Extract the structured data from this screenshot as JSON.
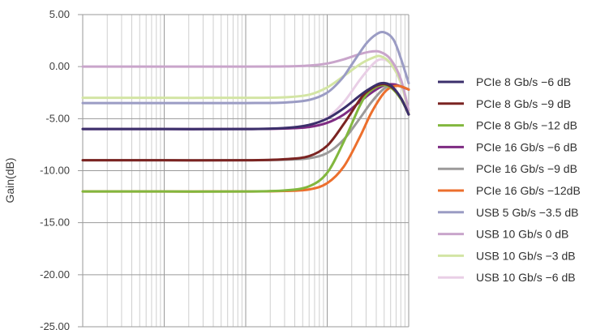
{
  "chart_data": {
    "type": "line",
    "x_scale": "log",
    "xlim": [
      1,
      10000
    ],
    "ylim": [
      -25,
      5
    ],
    "yticks": [
      "5.00",
      "0.00",
      "-5.00",
      "-10.00",
      "-15.00",
      "-20.00",
      "-25.00"
    ],
    "ylabel": "Gain(dB)",
    "xlabel": "",
    "grid": true,
    "legend_position": "right",
    "series": [
      {
        "name": "PCIe 8 Gb/s −6 dB",
        "color": "#3b2f6b",
        "x": [
          1,
          10,
          100,
          300,
          600,
          1000,
          1600,
          2500,
          3200,
          4500,
          6000,
          8000,
          10000
        ],
        "y": [
          -6,
          -6,
          -6,
          -5.9,
          -5.6,
          -5,
          -4,
          -2.8,
          -2.2,
          -1.6,
          -1.8,
          -3,
          -4.6
        ]
      },
      {
        "name": "PCIe 8 Gb/s −9 dB",
        "color": "#7b2422",
        "x": [
          1,
          10,
          100,
          300,
          600,
          1000,
          1600,
          2500,
          3200,
          4500,
          6000,
          8000,
          10000
        ],
        "y": [
          -9,
          -9,
          -9,
          -8.9,
          -8.6,
          -7.6,
          -5.5,
          -3.2,
          -2.3,
          -1.7,
          -1.9,
          -3,
          -4.6
        ]
      },
      {
        "name": "PCIe 8 Gb/s −12 dB",
        "color": "#82b73e",
        "x": [
          1,
          10,
          100,
          300,
          600,
          1000,
          1600,
          2500,
          3200,
          4500,
          6000,
          8000,
          10000
        ],
        "y": [
          -12,
          -12,
          -12,
          -11.9,
          -11.5,
          -10.2,
          -7.2,
          -3.8,
          -2.5,
          -1.8,
          -2,
          -3.1,
          -4.6
        ]
      },
      {
        "name": "PCIe 16 Gb/s −6 dB",
        "color": "#7e2b82",
        "x": [
          1,
          10,
          100,
          300,
          600,
          1000,
          1600,
          2500,
          3500,
          5000,
          6500,
          8000,
          10000
        ],
        "y": [
          -6,
          -6,
          -6,
          -5.95,
          -5.8,
          -5.4,
          -4.6,
          -3.4,
          -2.5,
          -1.8,
          -1.7,
          -1.9,
          -2.2
        ]
      },
      {
        "name": "PCIe 16 Gb/s −9 dB",
        "color": "#9c9a9a",
        "x": [
          1,
          10,
          100,
          300,
          600,
          1000,
          1600,
          2500,
          3500,
          5000,
          6500,
          8000,
          10000
        ],
        "y": [
          -9,
          -9,
          -9,
          -8.95,
          -8.8,
          -8.3,
          -7,
          -5,
          -3.4,
          -2.1,
          -1.8,
          -1.9,
          -2.2
        ]
      },
      {
        "name": "PCIe 16 Gb/s −12dB",
        "color": "#ec6f2d",
        "x": [
          1,
          10,
          100,
          300,
          600,
          1000,
          1600,
          2500,
          3500,
          5000,
          6500,
          8000,
          10000
        ],
        "y": [
          -12,
          -12,
          -12,
          -11.95,
          -11.8,
          -11.2,
          -9.6,
          -6.8,
          -4.4,
          -2.5,
          -1.9,
          -1.9,
          -2.2
        ]
      },
      {
        "name": "USB 5 Gb/s −3.5 dB",
        "color": "#9b9cc4",
        "x": [
          1,
          10,
          100,
          300,
          600,
          1000,
          1500,
          2000,
          3000,
          4000,
          5000,
          6500,
          8000,
          10000
        ],
        "y": [
          -3.5,
          -3.5,
          -3.5,
          -3.45,
          -3.2,
          -2.5,
          -1.2,
          0.2,
          2.2,
          3.1,
          3.3,
          2.6,
          0.8,
          -1.6
        ]
      },
      {
        "name": "USB 10 Gb/s 0 dB",
        "color": "#c9a5cb",
        "x": [
          1,
          10,
          100,
          300,
          600,
          1000,
          1600,
          2500,
          3500,
          4500,
          6000,
          8000,
          10000
        ],
        "y": [
          0,
          0,
          0,
          0.02,
          0.1,
          0.3,
          0.7,
          1.2,
          1.45,
          1.4,
          0.7,
          -1.2,
          -4.2
        ]
      },
      {
        "name": "USB 10 Gb/s −3 dB",
        "color": "#d3e5a4",
        "x": [
          1,
          10,
          100,
          300,
          600,
          1000,
          1600,
          2500,
          3500,
          4500,
          6000,
          8000,
          10000
        ],
        "y": [
          -3,
          -3,
          -3,
          -2.95,
          -2.7,
          -2,
          -0.9,
          0.2,
          0.8,
          1,
          0.3,
          -1.5,
          -4.4
        ]
      },
      {
        "name": "USB 10 Gb/s −6 dB",
        "color": "#e9cfe6",
        "x": [
          1,
          10,
          100,
          300,
          600,
          1000,
          1600,
          2500,
          3500,
          4500,
          6000,
          8000,
          10000
        ],
        "y": [
          -6,
          -6,
          -6,
          -5.9,
          -5.6,
          -4.9,
          -3.4,
          -1.3,
          0.1,
          0.7,
          0.3,
          -1.6,
          -4.4
        ]
      }
    ]
  }
}
